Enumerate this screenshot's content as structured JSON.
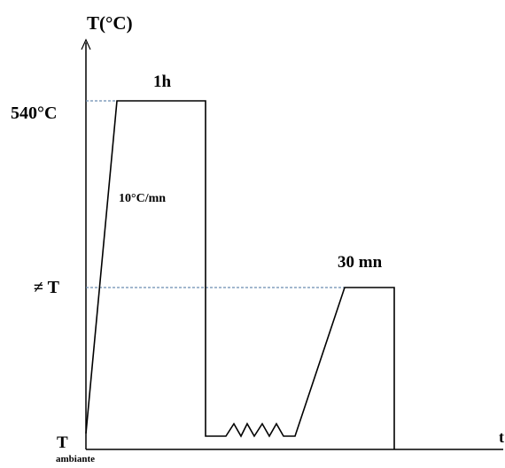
{
  "labels": {
    "y_axis": "T(°C)",
    "time_axis": "t",
    "temp_high": "540°C",
    "hold_1": "1h",
    "heating_rate": "10°C/mn",
    "temp_mid": "≠ T",
    "hold_2": "30 mn",
    "temp_low": "T",
    "temp_low_sub": "ambiante"
  },
  "colors": {
    "line": "#000000",
    "guide": "#6a8cb0"
  }
}
